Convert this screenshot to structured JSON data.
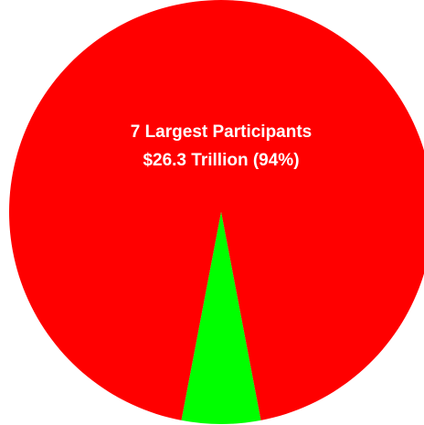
{
  "chart_data": {
    "type": "pie",
    "slices": [
      {
        "value": 94,
        "color": "#ff0000",
        "label_lines": [
          "7 Largest Participants",
          "$26.3 Trillion (94%)"
        ]
      },
      {
        "value": 6,
        "color": "#00ff00",
        "label_lines": []
      }
    ],
    "title": "",
    "legend": "none"
  }
}
